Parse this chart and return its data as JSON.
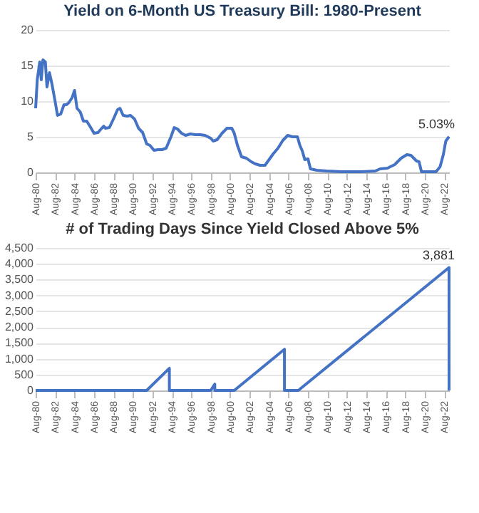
{
  "chart_data": [
    {
      "type": "line",
      "title": "Yield on 6-Month US Treasury Bill: 1980-Present",
      "grid": "y",
      "xlim": [
        "1980-08",
        "2023-02"
      ],
      "ylim": [
        0,
        20
      ],
      "yticks": [
        0,
        5,
        10,
        15,
        20
      ],
      "xticks": [
        {
          "value": "1980-08",
          "label": "Aug-80"
        },
        {
          "value": "1982-08",
          "label": "Aug-82"
        },
        {
          "value": "1984-08",
          "label": "Aug-84"
        },
        {
          "value": "1986-08",
          "label": "Aug-86"
        },
        {
          "value": "1988-08",
          "label": "Aug-88"
        },
        {
          "value": "1990-08",
          "label": "Aug-90"
        },
        {
          "value": "1992-08",
          "label": "Aug-92"
        },
        {
          "value": "1994-08",
          "label": "Aug-94"
        },
        {
          "value": "1996-08",
          "label": "Aug-96"
        },
        {
          "value": "1998-08",
          "label": "Aug-98"
        },
        {
          "value": "2000-08",
          "label": "Aug-00"
        },
        {
          "value": "2002-08",
          "label": "Aug-02"
        },
        {
          "value": "2004-08",
          "label": "Aug-04"
        },
        {
          "value": "2006-08",
          "label": "Aug-06"
        },
        {
          "value": "2008-08",
          "label": "Aug-08"
        },
        {
          "value": "2010-08",
          "label": "Aug-10"
        },
        {
          "value": "2012-08",
          "label": "Aug-12"
        },
        {
          "value": "2014-08",
          "label": "Aug-14"
        },
        {
          "value": "2016-08",
          "label": "Aug-16"
        },
        {
          "value": "2018-08",
          "label": "Aug-18"
        },
        {
          "value": "2020-08",
          "label": "Aug-20"
        },
        {
          "value": "2022-08",
          "label": "Aug-22"
        }
      ],
      "annotations": [
        {
          "text": "5.03%",
          "x": "2023-02",
          "y": 5.03
        }
      ],
      "series": [
        {
          "color": "#4472c4",
          "x": [
            "1980-08",
            "1980-10",
            "1981-01",
            "1981-03",
            "1981-05",
            "1981-08",
            "1981-10",
            "1982-01",
            "1982-04",
            "1982-08",
            "1982-11",
            "1983-03",
            "1983-07",
            "1983-10",
            "1984-01",
            "1984-05",
            "1984-08",
            "1984-11",
            "1985-03",
            "1985-07",
            "1985-11",
            "1986-04",
            "1986-08",
            "1987-01",
            "1987-04",
            "1987-08",
            "1987-10",
            "1988-03",
            "1988-08",
            "1989-01",
            "1989-04",
            "1989-08",
            "1990-01",
            "1990-05",
            "1990-10",
            "1991-03",
            "1991-08",
            "1992-01",
            "1992-05",
            "1992-10",
            "1993-03",
            "1993-08",
            "1994-01",
            "1994-07",
            "1994-11",
            "1995-03",
            "1995-08",
            "1996-01",
            "1996-07",
            "1997-01",
            "1997-07",
            "1998-01",
            "1998-08",
            "1998-11",
            "1999-04",
            "1999-10",
            "2000-04",
            "2000-10",
            "2001-01",
            "2001-05",
            "2001-10",
            "2002-04",
            "2002-10",
            "2003-03",
            "2003-09",
            "2004-03",
            "2004-08",
            "2005-01",
            "2005-07",
            "2006-01",
            "2006-07",
            "2007-01",
            "2007-07",
            "2007-10",
            "2008-01",
            "2008-04",
            "2008-08",
            "2008-11",
            "2009-07",
            "2010-07",
            "2012-01",
            "2014-01",
            "2015-07",
            "2016-01",
            "2016-10",
            "2017-07",
            "2018-03",
            "2018-10",
            "2019-03",
            "2019-10",
            "2020-01",
            "2020-04",
            "2021-01",
            "2021-10",
            "2022-03",
            "2022-07",
            "2022-10",
            "2023-02"
          ],
          "values": [
            9,
            13,
            15.5,
            13,
            15.8,
            15.5,
            12,
            14,
            12.5,
            10,
            8,
            8.2,
            9.5,
            9.5,
            9.8,
            10.5,
            11.5,
            9,
            8.5,
            7.2,
            7.2,
            6.3,
            5.5,
            5.6,
            6,
            6.5,
            6.2,
            6.3,
            7.5,
            8.8,
            9,
            8,
            7.9,
            8,
            7.5,
            6.2,
            5.6,
            4,
            3.8,
            3.1,
            3.2,
            3.2,
            3.4,
            5,
            6.3,
            6.1,
            5.5,
            5.2,
            5.4,
            5.3,
            5.3,
            5.2,
            4.8,
            4.4,
            4.6,
            5.5,
            6.2,
            6.2,
            5.5,
            3.8,
            2.2,
            2,
            1.5,
            1.2,
            1,
            1,
            1.8,
            2.6,
            3.4,
            4.5,
            5.2,
            5,
            5,
            3.8,
            3,
            1.8,
            1.9,
            0.5,
            0.3,
            0.2,
            0.1,
            0.1,
            0.2,
            0.5,
            0.6,
            1.1,
            2,
            2.5,
            2.4,
            1.6,
            1.5,
            0.1,
            0.1,
            0.1,
            0.8,
            2.5,
            4.4,
            5.03
          ]
        }
      ]
    },
    {
      "type": "line",
      "title": "# of Trading Days Since Yield Closed Above 5%",
      "grid": "y",
      "xlim": [
        "1980-08",
        "2023-02"
      ],
      "ylim": [
        0,
        4500
      ],
      "yticks": [
        {
          "value": 0,
          "label": "0"
        },
        {
          "value": 500,
          "label": "500"
        },
        {
          "value": 1000,
          "label": "1,000"
        },
        {
          "value": 1500,
          "label": "1,500"
        },
        {
          "value": 2000,
          "label": "2,000"
        },
        {
          "value": 2500,
          "label": "2,500"
        },
        {
          "value": 3000,
          "label": "3,000"
        },
        {
          "value": 3500,
          "label": "3,500"
        },
        {
          "value": 4000,
          "label": "4,000"
        },
        {
          "value": 4500,
          "label": "4,500"
        }
      ],
      "xticks": [
        {
          "value": "1980-08",
          "label": "Aug-80"
        },
        {
          "value": "1982-08",
          "label": "Aug-82"
        },
        {
          "value": "1984-08",
          "label": "Aug-84"
        },
        {
          "value": "1986-08",
          "label": "Aug-86"
        },
        {
          "value": "1988-08",
          "label": "Aug-88"
        },
        {
          "value": "1990-08",
          "label": "Aug-90"
        },
        {
          "value": "1992-08",
          "label": "Aug-92"
        },
        {
          "value": "1994-08",
          "label": "Aug-94"
        },
        {
          "value": "1996-08",
          "label": "Aug-96"
        },
        {
          "value": "1998-08",
          "label": "Aug-98"
        },
        {
          "value": "2000-08",
          "label": "Aug-00"
        },
        {
          "value": "2002-08",
          "label": "Aug-02"
        },
        {
          "value": "2004-08",
          "label": "Aug-04"
        },
        {
          "value": "2006-08",
          "label": "Aug-06"
        },
        {
          "value": "2008-08",
          "label": "Aug-08"
        },
        {
          "value": "2010-08",
          "label": "Aug-10"
        },
        {
          "value": "2012-08",
          "label": "Aug-12"
        },
        {
          "value": "2014-08",
          "label": "Aug-14"
        },
        {
          "value": "2016-08",
          "label": "Aug-16"
        },
        {
          "value": "2018-08",
          "label": "Aug-18"
        },
        {
          "value": "2020-08",
          "label": "Aug-20"
        },
        {
          "value": "2022-08",
          "label": "Aug-22"
        }
      ],
      "annotations": [
        {
          "text": "3,881",
          "x": "2023-01-31",
          "y": 3881
        }
      ],
      "series": [
        {
          "color": "#4472c4",
          "x": [
            "1980-08-01",
            "1992-01-01",
            "1994-05-01",
            "1994-05-02",
            "1998-08-01",
            "1999-01-01",
            "1999-01-02",
            "2001-01-01",
            "2006-03-01",
            "2006-03-02",
            "2007-08-01",
            "2023-01-31",
            "2023-02-01"
          ],
          "values": [
            0,
            0,
            700,
            0,
            0,
            200,
            0,
            0,
            1300,
            0,
            0,
            3881,
            0
          ]
        }
      ]
    }
  ]
}
